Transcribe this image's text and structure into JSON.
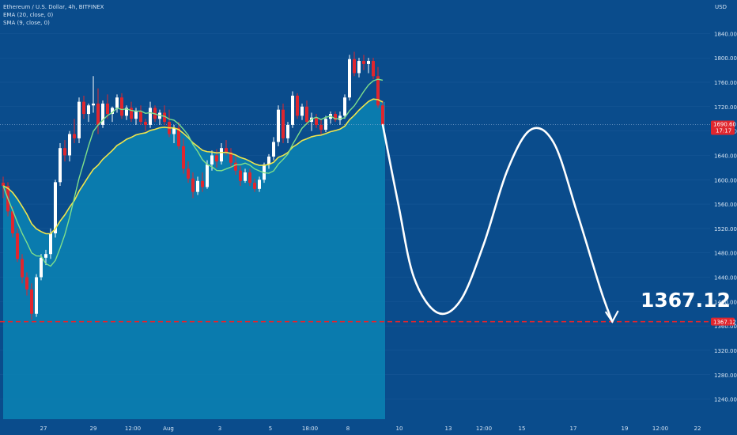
{
  "legend": {
    "symbol": "Ethereum / U.S. Dollar, 4h, BITFINEX",
    "ema": "EMA (20, close, 0)",
    "sma": "SMA (9, close, 0)"
  },
  "axis": {
    "currency": "USD"
  },
  "current_price": {
    "value": "1690.60",
    "countdown": "17:17"
  },
  "target": {
    "value": "1367.12",
    "tag": "1367.12"
  },
  "colors": {
    "background": "#0a4c8c",
    "area_fill": "#0a84b4",
    "up_candle": "#ffffff",
    "down_candle": "#e0262e",
    "ema_line": "#f0e64b",
    "sma_line": "#7fe08a",
    "projection": "#ffffff",
    "target_line": "#e0262e"
  },
  "chart_data": {
    "type": "line",
    "y_ticks": [
      1840,
      1800,
      1760,
      1720,
      1680,
      1640,
      1600,
      1560,
      1520,
      1480,
      1440,
      1400,
      1360,
      1320,
      1280,
      1240
    ],
    "ylim": [
      1207,
      1895
    ],
    "x_ticks": [
      "27",
      "29",
      "12:00",
      "Aug",
      "3",
      "5",
      "18:00",
      "8",
      "10",
      "13",
      "12:00",
      "15",
      "17",
      "19",
      "12:00",
      "22"
    ],
    "candles": [
      [
        1595,
        1605,
        1570,
        1590
      ],
      [
        1590,
        1596,
        1540,
        1548
      ],
      [
        1548,
        1556,
        1505,
        1512
      ],
      [
        1512,
        1520,
        1465,
        1470
      ],
      [
        1470,
        1478,
        1430,
        1440
      ],
      [
        1440,
        1448,
        1410,
        1420
      ],
      [
        1420,
        1430,
        1370,
        1380
      ],
      [
        1380,
        1445,
        1375,
        1440
      ],
      [
        1440,
        1478,
        1435,
        1472
      ],
      [
        1472,
        1485,
        1460,
        1478
      ],
      [
        1478,
        1520,
        1470,
        1512
      ],
      [
        1512,
        1600,
        1505,
        1596
      ],
      [
        1596,
        1660,
        1590,
        1652
      ],
      [
        1652,
        1665,
        1630,
        1640
      ],
      [
        1640,
        1680,
        1630,
        1675
      ],
      [
        1675,
        1700,
        1660,
        1668
      ],
      [
        1668,
        1735,
        1660,
        1728
      ],
      [
        1728,
        1738,
        1700,
        1708
      ],
      [
        1708,
        1725,
        1695,
        1722
      ],
      [
        1722,
        1770,
        1710,
        1725
      ],
      [
        1725,
        1750,
        1675,
        1690
      ],
      [
        1690,
        1730,
        1685,
        1725
      ],
      [
        1725,
        1740,
        1700,
        1708
      ],
      [
        1708,
        1720,
        1695,
        1718
      ],
      [
        1718,
        1740,
        1710,
        1735
      ],
      [
        1735,
        1742,
        1700,
        1705
      ],
      [
        1705,
        1722,
        1698,
        1718
      ],
      [
        1718,
        1728,
        1695,
        1700
      ],
      [
        1700,
        1718,
        1690,
        1712
      ],
      [
        1712,
        1722,
        1690,
        1695
      ],
      [
        1695,
        1700,
        1680,
        1690
      ],
      [
        1690,
        1728,
        1685,
        1718
      ],
      [
        1718,
        1722,
        1695,
        1700
      ],
      [
        1700,
        1715,
        1690,
        1710
      ],
      [
        1710,
        1722,
        1690,
        1695
      ],
      [
        1695,
        1715,
        1670,
        1675
      ],
      [
        1675,
        1690,
        1660,
        1685
      ],
      [
        1685,
        1695,
        1650,
        1655
      ],
      [
        1655,
        1668,
        1610,
        1618
      ],
      [
        1618,
        1630,
        1595,
        1602
      ],
      [
        1602,
        1612,
        1570,
        1580
      ],
      [
        1580,
        1605,
        1575,
        1598
      ],
      [
        1598,
        1612,
        1580,
        1588
      ],
      [
        1588,
        1632,
        1585,
        1625
      ],
      [
        1625,
        1648,
        1615,
        1640
      ],
      [
        1640,
        1650,
        1620,
        1630
      ],
      [
        1630,
        1660,
        1625,
        1652
      ],
      [
        1652,
        1665,
        1640,
        1645
      ],
      [
        1645,
        1652,
        1620,
        1628
      ],
      [
        1628,
        1640,
        1608,
        1615
      ],
      [
        1615,
        1622,
        1590,
        1598
      ],
      [
        1598,
        1618,
        1595,
        1612
      ],
      [
        1612,
        1618,
        1590,
        1595
      ],
      [
        1595,
        1602,
        1580,
        1585
      ],
      [
        1585,
        1605,
        1580,
        1600
      ],
      [
        1600,
        1628,
        1595,
        1625
      ],
      [
        1625,
        1642,
        1618,
        1638
      ],
      [
        1638,
        1670,
        1632,
        1662
      ],
      [
        1662,
        1722,
        1655,
        1715
      ],
      [
        1715,
        1725,
        1660,
        1668
      ],
      [
        1668,
        1695,
        1660,
        1690
      ],
      [
        1690,
        1745,
        1685,
        1738
      ],
      [
        1738,
        1742,
        1700,
        1705
      ],
      [
        1705,
        1725,
        1698,
        1720
      ],
      [
        1720,
        1730,
        1690,
        1695
      ],
      [
        1695,
        1710,
        1680,
        1702
      ],
      [
        1702,
        1708,
        1685,
        1690
      ],
      [
        1690,
        1700,
        1675,
        1682
      ],
      [
        1682,
        1705,
        1678,
        1700
      ],
      [
        1700,
        1712,
        1692,
        1708
      ],
      [
        1708,
        1712,
        1695,
        1698
      ],
      [
        1698,
        1712,
        1690,
        1705
      ],
      [
        1705,
        1740,
        1700,
        1735
      ],
      [
        1735,
        1805,
        1730,
        1798
      ],
      [
        1798,
        1810,
        1770,
        1775
      ],
      [
        1775,
        1800,
        1768,
        1795
      ],
      [
        1795,
        1805,
        1780,
        1790
      ],
      [
        1790,
        1800,
        1775,
        1795
      ],
      [
        1795,
        1800,
        1765,
        1770
      ],
      [
        1770,
        1785,
        1718,
        1722
      ],
      [
        1722,
        1730,
        1685,
        1690
      ]
    ],
    "projection": [
      [
        0,
        1690
      ],
      [
        4,
        1560
      ],
      [
        8,
        1440
      ],
      [
        14,
        1382
      ],
      [
        20,
        1402
      ],
      [
        26,
        1495
      ],
      [
        32,
        1615
      ],
      [
        38,
        1682
      ],
      [
        44,
        1660
      ],
      [
        50,
        1545
      ],
      [
        56,
        1420
      ],
      [
        59,
        1367
      ]
    ],
    "target_price": 1367.12,
    "current_price": 1690.6
  }
}
